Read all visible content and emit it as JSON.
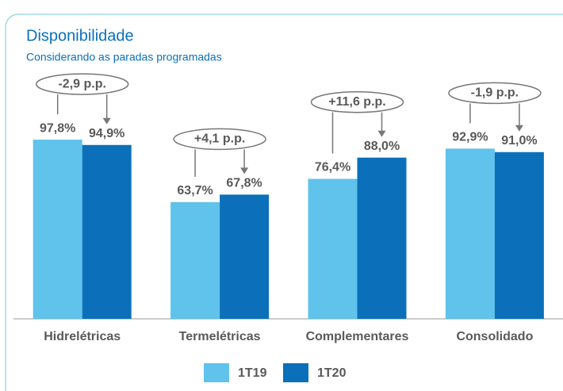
{
  "chart_data": {
    "type": "bar",
    "title": "Disponibilidade",
    "subtitle": "Considerando as paradas programadas",
    "categories": [
      "Hidrelétricas",
      "Termelétricas",
      "Complementares",
      "Consolidado"
    ],
    "series": [
      {
        "name": "1T19",
        "color": "#5fc3ec",
        "values": [
          97.8,
          63.7,
          76.4,
          92.9
        ],
        "value_labels": [
          "97,8%",
          "63,7%",
          "76,4%",
          "92,9%"
        ]
      },
      {
        "name": "1T20",
        "color": "#0b70b9",
        "values": [
          94.9,
          67.8,
          88.0,
          91.0
        ],
        "value_labels": [
          "94,9%",
          "67,8%",
          "88,0%",
          "91,0%"
        ]
      }
    ],
    "annotations": [
      "-2,9 p.p.",
      "+4,1 p.p.",
      "+11,6 p.p.",
      "-1,9 p.p."
    ],
    "ylim": [
      0,
      100
    ]
  }
}
